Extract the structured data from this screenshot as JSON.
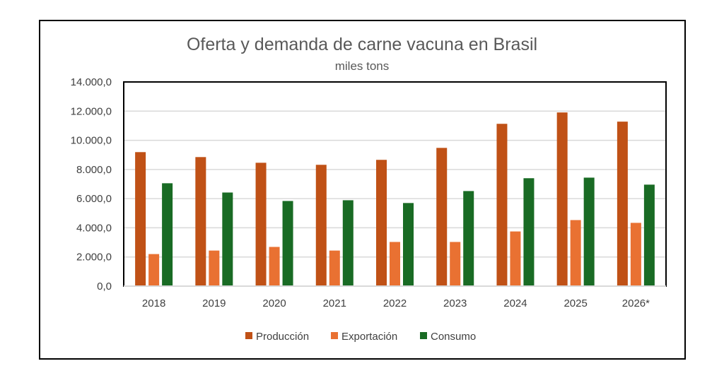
{
  "chart_data": {
    "type": "bar",
    "title": "Oferta y demanda de carne vacuna en Brasil",
    "subtitle": "miles tons",
    "xlabel": "",
    "ylabel": "",
    "ylim": [
      0,
      14000
    ],
    "yticks": [
      0,
      2000,
      4000,
      6000,
      8000,
      10000,
      12000,
      14000
    ],
    "ytick_labels": [
      "0,0",
      "2.000,0",
      "4.000,0",
      "6.000,0",
      "8.000,0",
      "10.000,0",
      "12.000,0",
      "14.000,0"
    ],
    "grid": true,
    "legend_position": "bottom",
    "categories": [
      "2018",
      "2019",
      "2020",
      "2021",
      "2022",
      "2023",
      "2024",
      "2025",
      "2026*"
    ],
    "series": [
      {
        "name": "Producción",
        "color": "#C05116",
        "values": [
          9190,
          8850,
          8460,
          8320,
          8660,
          9480,
          11130,
          11910,
          11280
        ]
      },
      {
        "name": "Exportación",
        "color": "#E97132",
        "values": [
          2200,
          2440,
          2690,
          2440,
          3030,
          3030,
          3750,
          4530,
          4340
        ]
      },
      {
        "name": "Consumo",
        "color": "#196B24",
        "values": [
          7055,
          6420,
          5840,
          5890,
          5700,
          6520,
          7400,
          7440,
          6960
        ]
      }
    ]
  }
}
